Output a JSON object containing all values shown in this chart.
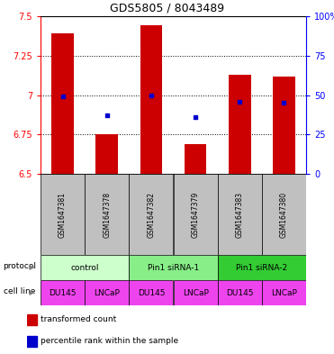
{
  "title": "GDS5805 / 8043489",
  "samples": [
    "GSM1647381",
    "GSM1647378",
    "GSM1647382",
    "GSM1647379",
    "GSM1647383",
    "GSM1647380"
  ],
  "bar_values": [
    7.39,
    6.75,
    7.44,
    6.69,
    7.13,
    7.12
  ],
  "percentile_values": [
    49,
    37,
    50,
    36,
    46,
    45
  ],
  "ylim": [
    6.5,
    7.5
  ],
  "yticks": [
    6.5,
    6.75,
    7.0,
    7.25,
    7.5
  ],
  "ytick_labels_left": [
    "6.5",
    "6.75",
    "7",
    "7.25",
    "7.5"
  ],
  "ytick_labels_right": [
    "0",
    "25",
    "50",
    "75",
    "100%"
  ],
  "y2lim": [
    0,
    100
  ],
  "protocols": [
    {
      "label": "control",
      "start": 0,
      "end": 2,
      "color": "#ccffcc"
    },
    {
      "label": "Pin1 siRNA-1",
      "start": 2,
      "end": 4,
      "color": "#88ee88"
    },
    {
      "label": "Pin1 siRNA-2",
      "start": 4,
      "end": 6,
      "color": "#33cc33"
    }
  ],
  "cell_labels": [
    "DU145",
    "LNCaP",
    "DU145",
    "LNCaP",
    "DU145",
    "LNCaP"
  ],
  "bar_color": "#cc0000",
  "dot_color": "#0000cc",
  "bar_width": 0.5,
  "bg_color": "#ffffff",
  "sample_bg_color": "#c0c0c0",
  "cell_line_color": "#ee44ee",
  "legend_items": [
    {
      "color": "#cc0000",
      "label": "transformed count"
    },
    {
      "color": "#0000cc",
      "label": "percentile rank within the sample"
    }
  ]
}
